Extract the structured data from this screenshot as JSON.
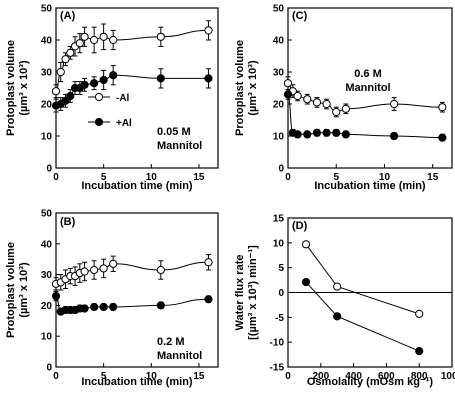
{
  "chart_data": [
    {
      "panel": "(A)",
      "type": "scatter",
      "xlabel": "Incubation time (min)",
      "ylabel": [
        "Protoplast volume",
        "(µm³ x 10³)"
      ],
      "xlim": [
        0,
        17
      ],
      "ylim": [
        0,
        50
      ],
      "xticks": [
        0,
        5,
        10,
        15
      ],
      "yticks": [
        0,
        10,
        20,
        30,
        40,
        50
      ],
      "annotation": [
        "0.05 M",
        "Mannitol"
      ],
      "legend": [
        {
          "label": "-Al",
          "marker": "open"
        },
        {
          "label": "+Al",
          "marker": "filled"
        }
      ],
      "series": [
        {
          "name": "-Al",
          "marker": "open",
          "x": [
            0,
            0.5,
            1,
            1.5,
            2,
            2.5,
            3,
            4,
            5,
            6,
            11,
            16
          ],
          "y": [
            24,
            30,
            34,
            36,
            38,
            39,
            41,
            40,
            41,
            40,
            41,
            43
          ],
          "err": [
            2,
            3,
            2,
            2,
            3,
            3,
            3,
            4,
            4,
            3,
            3,
            3
          ]
        },
        {
          "name": "+Al",
          "marker": "filled",
          "x": [
            0,
            0.5,
            1,
            1.5,
            2,
            2.5,
            3,
            4,
            5,
            6,
            11,
            16
          ],
          "y": [
            19.5,
            20,
            21,
            22.5,
            25,
            25,
            26,
            26.5,
            27.5,
            29,
            28,
            28
          ],
          "err": [
            2,
            2,
            2,
            2,
            2,
            2,
            2,
            2,
            3,
            3,
            3,
            3
          ]
        }
      ]
    },
    {
      "panel": "(C)",
      "type": "scatter",
      "xlabel": "Incubation time (min)",
      "ylabel": [
        "Protoplast volume",
        "(µm³ x 10³)"
      ],
      "xlim": [
        0,
        17
      ],
      "ylim": [
        0,
        50
      ],
      "xticks": [
        0,
        5,
        10,
        15
      ],
      "yticks": [
        0,
        10,
        20,
        30,
        40,
        50
      ],
      "annotation": [
        "0.6 M",
        "Mannitol"
      ],
      "series": [
        {
          "name": "-Al",
          "marker": "open",
          "x": [
            0,
            0.5,
            1,
            2,
            3,
            4,
            5,
            6,
            11,
            16
          ],
          "y": [
            26.5,
            24,
            22.5,
            21.5,
            20.5,
            20,
            17.5,
            18.5,
            20,
            19
          ],
          "err": [
            2,
            2,
            1.5,
            1.5,
            1.5,
            1.5,
            1.5,
            1.5,
            2,
            1.5
          ]
        },
        {
          "name": "+Al",
          "marker": "filled",
          "x": [
            0,
            0.5,
            1,
            2,
            3,
            4,
            5,
            6,
            11,
            16
          ],
          "y": [
            23,
            11,
            10.5,
            10.5,
            11,
            11,
            11,
            10.5,
            10,
            9.5
          ],
          "err": [
            1.5,
            1,
            1,
            1,
            1,
            1,
            1,
            1,
            1,
            1
          ]
        }
      ]
    },
    {
      "panel": "(B)",
      "type": "scatter",
      "xlabel": "Incubation time (min)",
      "ylabel": [
        "Protoplast volume",
        "(µm³ x 10³)"
      ],
      "xlim": [
        0,
        17
      ],
      "ylim": [
        0,
        50
      ],
      "xticks": [
        0,
        5,
        10,
        15
      ],
      "yticks": [
        0,
        10,
        20,
        30,
        40,
        50
      ],
      "annotation": [
        "0.2 M",
        "Mannitol"
      ],
      "series": [
        {
          "name": "-Al",
          "marker": "open",
          "x": [
            0,
            0.5,
            1,
            1.5,
            2,
            2.5,
            3,
            4,
            5,
            6,
            11,
            16
          ],
          "y": [
            27,
            27.5,
            28.5,
            29.5,
            29.5,
            30.5,
            31,
            31.5,
            32,
            33.5,
            31.5,
            34
          ],
          "err": [
            2,
            2.5,
            3,
            2.5,
            3,
            3,
            3,
            3,
            3,
            2.5,
            3,
            2.5
          ]
        },
        {
          "name": "+Al",
          "marker": "filled",
          "x": [
            0,
            0.5,
            1,
            1.5,
            2,
            2.5,
            3,
            4,
            5,
            6,
            11,
            16
          ],
          "y": [
            23,
            18,
            18.5,
            18.5,
            18.5,
            19,
            19,
            19.5,
            19.5,
            19.5,
            20,
            22
          ],
          "err": [
            1.5,
            1,
            1,
            1,
            1,
            1,
            1,
            1,
            1,
            1,
            1,
            1
          ]
        }
      ]
    },
    {
      "panel": "(D)",
      "type": "line",
      "xlabel": "Osmolality  (mOsm kg⁻¹)",
      "ylabel": [
        "Water flux rate",
        "[(µm³ x 10³) min⁻¹]"
      ],
      "xlim": [
        0,
        1000
      ],
      "ylim": [
        -15,
        15
      ],
      "xticks": [
        0,
        200,
        400,
        600,
        800,
        1000
      ],
      "yticks": [
        -15,
        -10,
        -5,
        0,
        5,
        10,
        15
      ],
      "reference_line_y": 0,
      "series": [
        {
          "name": "-Al",
          "marker": "open",
          "x": [
            110,
            300,
            800
          ],
          "y": [
            9.7,
            1.2,
            -4.3
          ]
        },
        {
          "name": "+Al",
          "marker": "filled",
          "x": [
            110,
            300,
            800
          ],
          "y": [
            2.1,
            -4.8,
            -11.8
          ]
        }
      ]
    }
  ]
}
